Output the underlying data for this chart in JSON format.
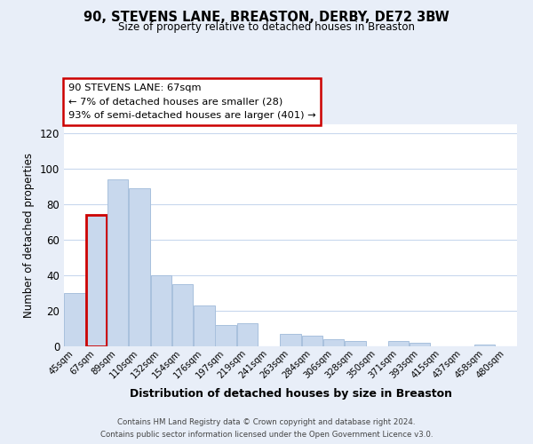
{
  "title": "90, STEVENS LANE, BREASTON, DERBY, DE72 3BW",
  "subtitle": "Size of property relative to detached houses in Breaston",
  "xlabel": "Distribution of detached houses by size in Breaston",
  "ylabel": "Number of detached properties",
  "bar_color": "#c8d8ed",
  "bar_edge_color": "#a8c0dd",
  "highlight_bar_index": 1,
  "highlight_edge_color": "#cc0000",
  "annotation_box_edge": "#cc0000",
  "categories": [
    "45sqm",
    "67sqm",
    "89sqm",
    "110sqm",
    "132sqm",
    "154sqm",
    "176sqm",
    "197sqm",
    "219sqm",
    "241sqm",
    "263sqm",
    "284sqm",
    "306sqm",
    "328sqm",
    "350sqm",
    "371sqm",
    "393sqm",
    "415sqm",
    "437sqm",
    "458sqm",
    "480sqm"
  ],
  "values": [
    30,
    74,
    94,
    89,
    40,
    35,
    23,
    12,
    13,
    0,
    7,
    6,
    4,
    3,
    0,
    3,
    2,
    0,
    0,
    1,
    0
  ],
  "ylim": [
    0,
    125
  ],
  "yticks": [
    0,
    20,
    40,
    60,
    80,
    100,
    120
  ],
  "annotation_title": "90 STEVENS LANE: 67sqm",
  "annotation_line1": "← 7% of detached houses are smaller (28)",
  "annotation_line2": "93% of semi-detached houses are larger (401) →",
  "footer_line1": "Contains HM Land Registry data © Crown copyright and database right 2024.",
  "footer_line2": "Contains public sector information licensed under the Open Government Licence v3.0.",
  "background_color": "#e8eef8",
  "plot_background_color": "#ffffff",
  "grid_color": "#c8d8ed"
}
